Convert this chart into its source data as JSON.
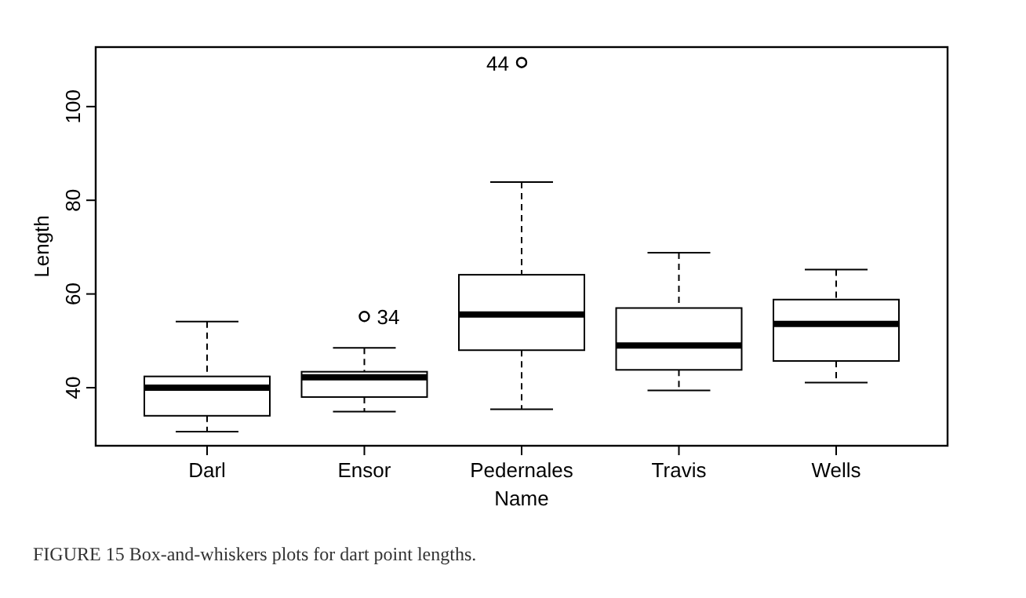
{
  "chart_data": {
    "type": "box",
    "xlabel": "Name",
    "ylabel": "Length",
    "categories": [
      "Darl",
      "Ensor",
      "Pedernales",
      "Travis",
      "Wells"
    ],
    "boxes": [
      {
        "low": 30.6,
        "q1": 34,
        "median": 40,
        "q3": 42.4,
        "high": 54.1
      },
      {
        "low": 34.9,
        "q1": 38,
        "median": 42.2,
        "q3": 43.4,
        "high": 48.5,
        "outliers": [
          55.2
        ]
      },
      {
        "low": 35.4,
        "q1": 48,
        "median": 55.6,
        "q3": 64.1,
        "high": 83.9,
        "outliers": [
          109.4
        ]
      },
      {
        "low": 39.4,
        "q1": 43.8,
        "median": 49,
        "q3": 57,
        "high": 68.8
      },
      {
        "low": 41.1,
        "q1": 45.7,
        "median": 53.6,
        "q3": 58.8,
        "high": 65.2
      }
    ],
    "ylim": [
      27.6,
      112.7
    ],
    "yticks": [
      40,
      60,
      80,
      100
    ],
    "grid": false,
    "line_style": "dashed",
    "marker": "circle",
    "annotations": [
      "34",
      "44",
      "FIGURE 15 Box-and-whiskers plots for dart point lengths."
    ]
  }
}
